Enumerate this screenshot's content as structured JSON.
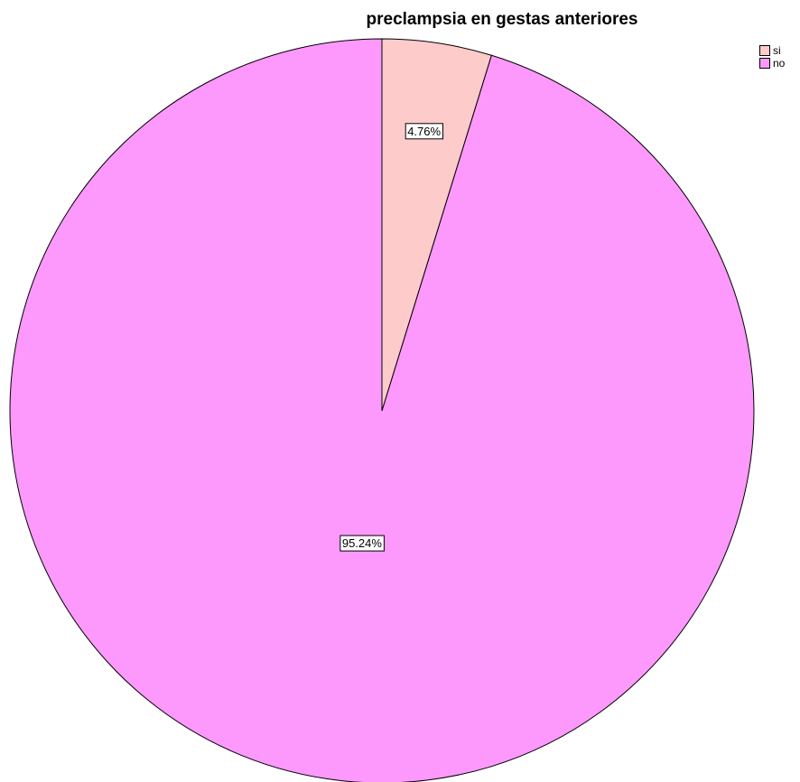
{
  "chart_data": {
    "type": "pie",
    "title": "preclampsia en gestas anteriores",
    "categories": [
      "si",
      "no"
    ],
    "values": [
      4.76,
      95.24
    ],
    "value_labels": [
      "4.76%",
      "95.24%"
    ],
    "colors": [
      "#fecbcb",
      "#fd98fd"
    ],
    "legend": "top-right"
  }
}
